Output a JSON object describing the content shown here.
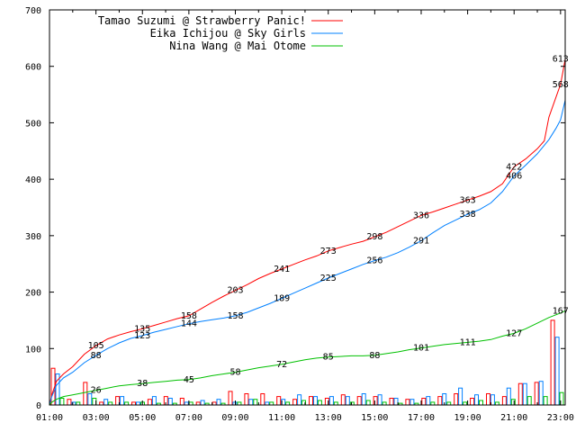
{
  "chart_data": {
    "type": "line",
    "title": "",
    "xlabel": "",
    "ylabel": "",
    "ylim": [
      0,
      700
    ],
    "xlim": [
      1,
      23.2
    ],
    "yticks": [
      "0",
      "100",
      "200",
      "300",
      "400",
      "500",
      "600",
      "700"
    ],
    "xticks": [
      "01:00",
      "03:00",
      "05:00",
      "07:00",
      "09:00",
      "11:00",
      "13:00",
      "15:00",
      "17:00",
      "19:00",
      "21:00",
      "23:00"
    ],
    "grid": false,
    "legend_position": "top-left",
    "series": [
      {
        "name": "Tamao Suzumi @ Strawberry Panic!",
        "color": "#ff0000",
        "cumulative": [
          {
            "x": 1.0,
            "y": 0
          },
          {
            "x": 1.1,
            "y": 18
          },
          {
            "x": 1.3,
            "y": 42
          },
          {
            "x": 1.6,
            "y": 55
          },
          {
            "x": 2.0,
            "y": 68
          },
          {
            "x": 2.5,
            "y": 90
          },
          {
            "x": 3.0,
            "y": 105
          },
          {
            "x": 3.5,
            "y": 117
          },
          {
            "x": 4.0,
            "y": 124
          },
          {
            "x": 4.5,
            "y": 130
          },
          {
            "x": 5.0,
            "y": 135
          },
          {
            "x": 5.5,
            "y": 141
          },
          {
            "x": 6.0,
            "y": 147
          },
          {
            "x": 6.5,
            "y": 153
          },
          {
            "x": 7.0,
            "y": 158
          },
          {
            "x": 7.5,
            "y": 170
          },
          {
            "x": 8.0,
            "y": 182
          },
          {
            "x": 8.5,
            "y": 193
          },
          {
            "x": 9.0,
            "y": 203
          },
          {
            "x": 9.5,
            "y": 213
          },
          {
            "x": 10.0,
            "y": 224
          },
          {
            "x": 10.5,
            "y": 233
          },
          {
            "x": 11.0,
            "y": 241
          },
          {
            "x": 11.5,
            "y": 249
          },
          {
            "x": 12.0,
            "y": 257
          },
          {
            "x": 12.5,
            "y": 264
          },
          {
            "x": 13.0,
            "y": 273
          },
          {
            "x": 13.5,
            "y": 279
          },
          {
            "x": 14.0,
            "y": 285
          },
          {
            "x": 14.5,
            "y": 290
          },
          {
            "x": 15.0,
            "y": 298
          },
          {
            "x": 15.5,
            "y": 306
          },
          {
            "x": 16.0,
            "y": 316
          },
          {
            "x": 16.5,
            "y": 326
          },
          {
            "x": 17.0,
            "y": 336
          },
          {
            "x": 17.5,
            "y": 342
          },
          {
            "x": 18.0,
            "y": 349
          },
          {
            "x": 18.5,
            "y": 356
          },
          {
            "x": 19.0,
            "y": 363
          },
          {
            "x": 19.5,
            "y": 370
          },
          {
            "x": 20.0,
            "y": 378
          },
          {
            "x": 20.5,
            "y": 392
          },
          {
            "x": 21.0,
            "y": 422
          },
          {
            "x": 21.5,
            "y": 436
          },
          {
            "x": 22.0,
            "y": 454
          },
          {
            "x": 22.3,
            "y": 468
          },
          {
            "x": 22.5,
            "y": 510
          },
          {
            "x": 22.8,
            "y": 545
          },
          {
            "x": 23.0,
            "y": 568
          },
          {
            "x": 23.1,
            "y": 590
          },
          {
            "x": 23.2,
            "y": 613
          }
        ],
        "labels": [
          {
            "x": 3.0,
            "y": 105,
            "text": "105"
          },
          {
            "x": 5.0,
            "y": 135,
            "text": "135"
          },
          {
            "x": 7.0,
            "y": 158,
            "text": "158"
          },
          {
            "x": 9.0,
            "y": 203,
            "text": "203"
          },
          {
            "x": 11.0,
            "y": 241,
            "text": "241"
          },
          {
            "x": 13.0,
            "y": 273,
            "text": "273"
          },
          {
            "x": 15.0,
            "y": 298,
            "text": "298"
          },
          {
            "x": 17.0,
            "y": 336,
            "text": "336"
          },
          {
            "x": 19.0,
            "y": 363,
            "text": "363"
          },
          {
            "x": 21.0,
            "y": 422,
            "text": "422"
          },
          {
            "x": 23.0,
            "y": 568,
            "text": "568"
          },
          {
            "x": 23.0,
            "y": 613,
            "text": "613"
          }
        ],
        "bars": [
          65,
          10,
          40,
          5,
          15,
          5,
          10,
          15,
          12,
          5,
          5,
          24,
          20,
          20,
          15,
          10,
          15,
          12,
          18,
          15,
          15,
          12,
          10,
          12,
          15,
          20,
          12,
          20,
          15,
          38,
          40,
          150
        ]
      },
      {
        "name": "Eika Ichijou @ Sky Girls",
        "color": "#0080ff",
        "cumulative": [
          {
            "x": 1.0,
            "y": 0
          },
          {
            "x": 1.1,
            "y": 15
          },
          {
            "x": 1.3,
            "y": 35
          },
          {
            "x": 1.6,
            "y": 48
          },
          {
            "x": 2.0,
            "y": 58
          },
          {
            "x": 2.5,
            "y": 75
          },
          {
            "x": 3.0,
            "y": 88
          },
          {
            "x": 3.5,
            "y": 100
          },
          {
            "x": 4.0,
            "y": 110
          },
          {
            "x": 4.5,
            "y": 118
          },
          {
            "x": 5.0,
            "y": 123
          },
          {
            "x": 5.5,
            "y": 129
          },
          {
            "x": 6.0,
            "y": 134
          },
          {
            "x": 6.5,
            "y": 139
          },
          {
            "x": 7.0,
            "y": 144
          },
          {
            "x": 7.5,
            "y": 148
          },
          {
            "x": 8.0,
            "y": 151
          },
          {
            "x": 8.5,
            "y": 154
          },
          {
            "x": 9.0,
            "y": 158
          },
          {
            "x": 9.5,
            "y": 164
          },
          {
            "x": 10.0,
            "y": 172
          },
          {
            "x": 10.5,
            "y": 180
          },
          {
            "x": 11.0,
            "y": 189
          },
          {
            "x": 11.5,
            "y": 198
          },
          {
            "x": 12.0,
            "y": 207
          },
          {
            "x": 12.5,
            "y": 216
          },
          {
            "x": 13.0,
            "y": 225
          },
          {
            "x": 13.5,
            "y": 233
          },
          {
            "x": 14.0,
            "y": 241
          },
          {
            "x": 14.5,
            "y": 249
          },
          {
            "x": 15.0,
            "y": 256
          },
          {
            "x": 15.5,
            "y": 262
          },
          {
            "x": 16.0,
            "y": 270
          },
          {
            "x": 16.5,
            "y": 280
          },
          {
            "x": 17.0,
            "y": 291
          },
          {
            "x": 17.5,
            "y": 305
          },
          {
            "x": 18.0,
            "y": 318
          },
          {
            "x": 18.5,
            "y": 328
          },
          {
            "x": 19.0,
            "y": 338
          },
          {
            "x": 19.5,
            "y": 346
          },
          {
            "x": 20.0,
            "y": 358
          },
          {
            "x": 20.5,
            "y": 378
          },
          {
            "x": 21.0,
            "y": 406
          },
          {
            "x": 21.5,
            "y": 425
          },
          {
            "x": 22.0,
            "y": 445
          },
          {
            "x": 22.5,
            "y": 470
          },
          {
            "x": 22.8,
            "y": 490
          },
          {
            "x": 23.0,
            "y": 505
          },
          {
            "x": 23.2,
            "y": 540
          }
        ],
        "labels": [
          {
            "x": 3.0,
            "y": 88,
            "text": "88"
          },
          {
            "x": 5.0,
            "y": 123,
            "text": "123"
          },
          {
            "x": 7.0,
            "y": 144,
            "text": "144"
          },
          {
            "x": 9.0,
            "y": 158,
            "text": "158"
          },
          {
            "x": 11.0,
            "y": 189,
            "text": "189"
          },
          {
            "x": 13.0,
            "y": 225,
            "text": "225"
          },
          {
            "x": 15.0,
            "y": 256,
            "text": "256"
          },
          {
            "x": 17.0,
            "y": 291,
            "text": "291"
          },
          {
            "x": 19.0,
            "y": 338,
            "text": "338"
          },
          {
            "x": 21.0,
            "y": 406,
            "text": "406"
          }
        ],
        "bars": [
          55,
          5,
          20,
          10,
          15,
          5,
          15,
          12,
          5,
          8,
          10,
          5,
          10,
          5,
          10,
          18,
          15,
          15,
          15,
          20,
          18,
          12,
          10,
          15,
          20,
          30,
          18,
          18,
          30,
          38,
          42,
          120
        ]
      },
      {
        "name": "Nina Wang @ Mai Otome",
        "color": "#00c000",
        "cumulative": [
          {
            "x": 1.0,
            "y": 0
          },
          {
            "x": 1.1,
            "y": 5
          },
          {
            "x": 1.3,
            "y": 10
          },
          {
            "x": 1.6,
            "y": 15
          },
          {
            "x": 2.0,
            "y": 18
          },
          {
            "x": 2.5,
            "y": 22
          },
          {
            "x": 3.0,
            "y": 26
          },
          {
            "x": 3.5,
            "y": 30
          },
          {
            "x": 4.0,
            "y": 34
          },
          {
            "x": 4.5,
            "y": 36
          },
          {
            "x": 5.0,
            "y": 38
          },
          {
            "x": 5.5,
            "y": 40
          },
          {
            "x": 6.0,
            "y": 42
          },
          {
            "x": 6.5,
            "y": 44
          },
          {
            "x": 7.0,
            "y": 45
          },
          {
            "x": 7.5,
            "y": 48
          },
          {
            "x": 8.0,
            "y": 52
          },
          {
            "x": 8.5,
            "y": 55
          },
          {
            "x": 9.0,
            "y": 58
          },
          {
            "x": 9.5,
            "y": 62
          },
          {
            "x": 10.0,
            "y": 66
          },
          {
            "x": 10.5,
            "y": 69
          },
          {
            "x": 11.0,
            "y": 72
          },
          {
            "x": 11.5,
            "y": 76
          },
          {
            "x": 12.0,
            "y": 80
          },
          {
            "x": 12.5,
            "y": 83
          },
          {
            "x": 13.0,
            "y": 85
          },
          {
            "x": 13.5,
            "y": 86
          },
          {
            "x": 14.0,
            "y": 87
          },
          {
            "x": 14.5,
            "y": 87
          },
          {
            "x": 15.0,
            "y": 88
          },
          {
            "x": 15.5,
            "y": 91
          },
          {
            "x": 16.0,
            "y": 94
          },
          {
            "x": 16.5,
            "y": 98
          },
          {
            "x": 17.0,
            "y": 101
          },
          {
            "x": 17.5,
            "y": 104
          },
          {
            "x": 18.0,
            "y": 107
          },
          {
            "x": 18.5,
            "y": 109
          },
          {
            "x": 19.0,
            "y": 111
          },
          {
            "x": 19.5,
            "y": 113
          },
          {
            "x": 20.0,
            "y": 116
          },
          {
            "x": 20.5,
            "y": 122
          },
          {
            "x": 21.0,
            "y": 127
          },
          {
            "x": 21.5,
            "y": 135
          },
          {
            "x": 22.0,
            "y": 145
          },
          {
            "x": 22.5,
            "y": 155
          },
          {
            "x": 23.0,
            "y": 163
          },
          {
            "x": 23.2,
            "y": 167
          }
        ],
        "labels": [
          {
            "x": 3.0,
            "y": 26,
            "text": "26"
          },
          {
            "x": 5.0,
            "y": 38,
            "text": "38"
          },
          {
            "x": 7.0,
            "y": 45,
            "text": "45"
          },
          {
            "x": 9.0,
            "y": 58,
            "text": "58"
          },
          {
            "x": 11.0,
            "y": 72,
            "text": "72"
          },
          {
            "x": 13.0,
            "y": 85,
            "text": "85"
          },
          {
            "x": 15.0,
            "y": 88,
            "text": "88"
          },
          {
            "x": 17.0,
            "y": 101,
            "text": "101"
          },
          {
            "x": 19.0,
            "y": 111,
            "text": "111"
          },
          {
            "x": 21.0,
            "y": 127,
            "text": "127"
          },
          {
            "x": 23.0,
            "y": 167,
            "text": "167"
          }
        ],
        "bars": [
          12,
          5,
          12,
          5,
          5,
          5,
          3,
          3,
          5,
          3,
          3,
          5,
          10,
          5,
          5,
          8,
          8,
          5,
          5,
          8,
          5,
          3,
          3,
          5,
          5,
          5,
          8,
          5,
          10,
          15,
          15,
          22
        ]
      }
    ]
  }
}
